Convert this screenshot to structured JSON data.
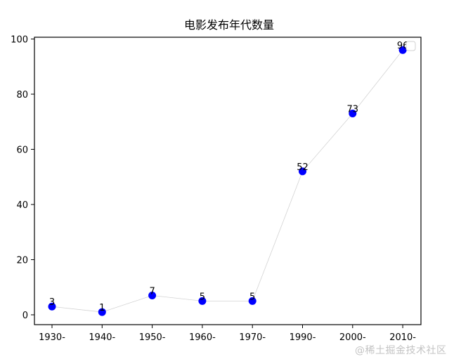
{
  "chart_data": {
    "type": "line",
    "title": "电影发布年代数量",
    "xlabel": "",
    "ylabel": "",
    "categories": [
      "1930-",
      "1940-",
      "1950-",
      "1960-",
      "1970-",
      "1990-",
      "2000-",
      "2010-"
    ],
    "values": [
      3,
      1,
      7,
      5,
      5,
      52,
      73,
      96
    ],
    "data_labels": [
      "3",
      "1",
      "7",
      "5",
      "5",
      "52",
      "73",
      "96"
    ],
    "ylim": [
      -4,
      101
    ],
    "yticks": [
      0,
      20,
      40,
      60,
      80,
      100
    ],
    "grid": false,
    "legend": {
      "position": "upper right",
      "entries": []
    },
    "marker_color": "#0000ff",
    "line_color": "#d3d3d3"
  },
  "watermark": "@稀土掘金技术社区"
}
